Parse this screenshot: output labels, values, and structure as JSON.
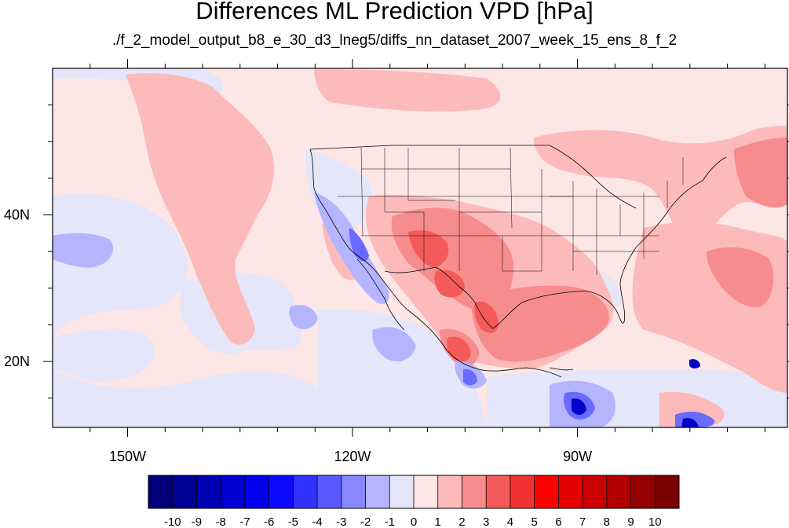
{
  "title": "Differences ML Prediction VPD [hPa]",
  "subtitle": "./f_2_model_output_b8_e_30_d3_lneg5/diffs_nn_dataset_2007_week_15_ens_8_f_2",
  "map": {
    "lon_range": [
      -160,
      -62
    ],
    "lat_range": [
      11,
      60
    ],
    "lon_ticks": [
      {
        "value": -150,
        "label": "150W"
      },
      {
        "value": -120,
        "label": "120W"
      },
      {
        "value": -90,
        "label": "90W"
      }
    ],
    "lat_ticks": [
      {
        "value": 40,
        "label": "40N"
      },
      {
        "value": 20,
        "label": "20N"
      }
    ]
  },
  "colorbar": {
    "labels": [
      "-10",
      "-9",
      "-8",
      "-7",
      "-6",
      "-5",
      "-4",
      "-3",
      "-2",
      "-1",
      "0",
      "1",
      "2",
      "3",
      "4",
      "5",
      "6",
      "7",
      "8",
      "9",
      "10"
    ],
    "colors": [
      "#00007a",
      "#000096",
      "#0000b4",
      "#0000d2",
      "#0000f0",
      "#0a0aff",
      "#3232ff",
      "#5a5aff",
      "#8787ff",
      "#b4b4ff",
      "#e4e4fa",
      "#fde6e6",
      "#fcbaba",
      "#f88c8c",
      "#f45a5a",
      "#f03232",
      "#ff0000",
      "#e60000",
      "#cc0000",
      "#b20000",
      "#960000",
      "#7a0000"
    ]
  },
  "chart_data": {
    "type": "heatmap",
    "title": "Differences ML Prediction VPD [hPa]",
    "subtitle": "./f_2_model_output_b8_e_30_d3_lneg5/diffs_nn_dataset_2007_week_15_ens_8_f_2",
    "variable": "VPD difference",
    "units": "hPa",
    "x_range": [
      -160,
      -62
    ],
    "y_range": [
      11,
      60
    ],
    "x_ticks": [
      "150W",
      "120W",
      "90W"
    ],
    "y_ticks": [
      "40N",
      "20N"
    ],
    "colorbar_levels": [
      -10,
      -9,
      -8,
      -7,
      -6,
      -5,
      -4,
      -3,
      -2,
      -1,
      0,
      1,
      2,
      3,
      4,
      5,
      6,
      7,
      8,
      9,
      10
    ]
  }
}
